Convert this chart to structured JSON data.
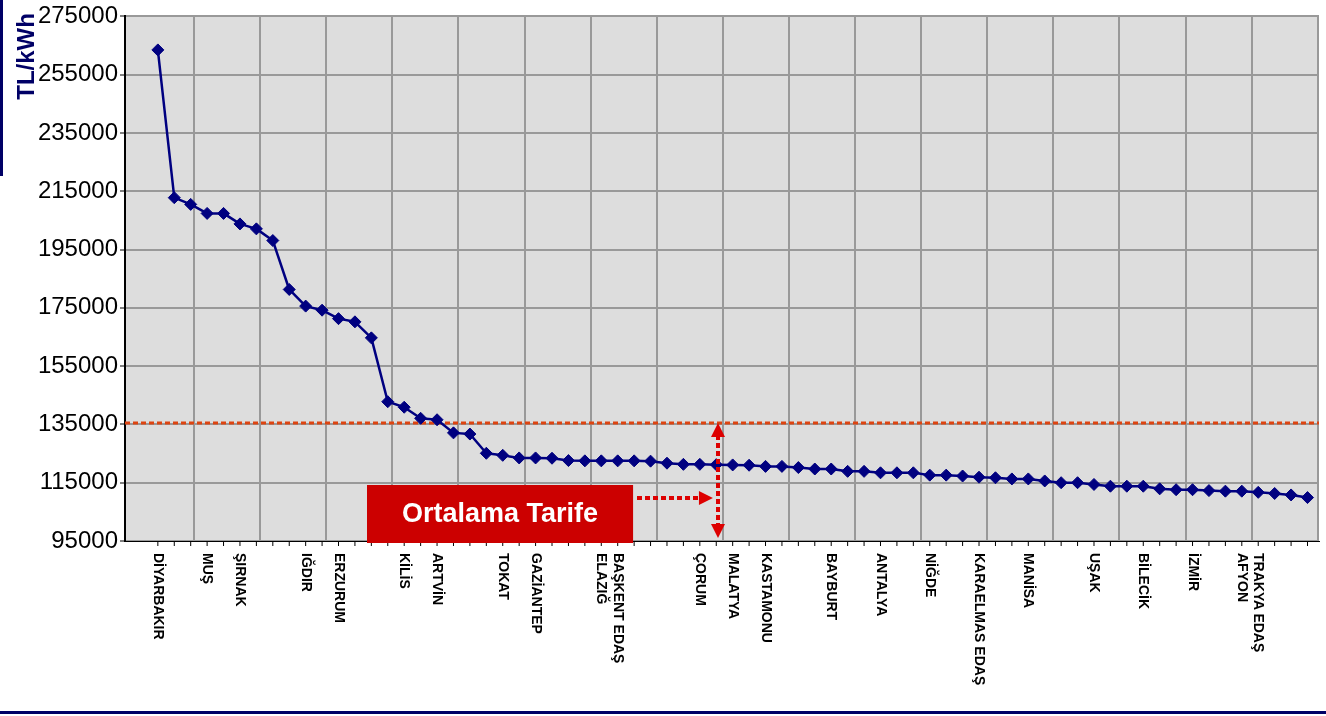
{
  "chart_data": {
    "type": "line",
    "ylabel": "TL/kWh",
    "categories": [
      "DİYARBAKIR",
      null,
      null,
      "MUŞ",
      null,
      "ŞIRNAK",
      null,
      null,
      null,
      "IĞDIR",
      null,
      "ERZURUM",
      null,
      null,
      null,
      "KİLİS",
      null,
      "ARTVİN",
      null,
      null,
      null,
      "TOKAT",
      null,
      "GAZİANTEP",
      null,
      null,
      null,
      "ELAZIĞ",
      "BAŞKENT EDAŞ",
      null,
      null,
      null,
      null,
      "ÇORUM",
      null,
      "MALATYA",
      null,
      "KASTAMONU",
      null,
      null,
      null,
      "BAYBURT",
      null,
      null,
      "ANTALYA",
      null,
      null,
      "NİĞDE",
      null,
      null,
      "KARAELMAS EDAŞ",
      null,
      null,
      "MANİSA",
      null,
      null,
      null,
      "UŞAK",
      null,
      null,
      "BİLECİK",
      null,
      null,
      "İZMİR",
      null,
      null,
      "AFYON",
      "TRAKYA EDAŞ",
      null,
      null,
      null
    ],
    "values": [
      263500,
      212800,
      210500,
      207400,
      207400,
      203800,
      202100,
      198100,
      181300,
      175600,
      174200,
      171300,
      170200,
      164700,
      142800,
      140900,
      137100,
      136600,
      132100,
      131700,
      125100,
      124400,
      123500,
      123500,
      123400,
      122600,
      122500,
      122500,
      122500,
      122500,
      122400,
      121700,
      121300,
      121300,
      121200,
      121100,
      121000,
      120600,
      120600,
      120200,
      119700,
      119700,
      118900,
      118900,
      118400,
      118400,
      118400,
      117600,
      117600,
      117300,
      116900,
      116700,
      116300,
      116300,
      115600,
      115000,
      115000,
      114400,
      113800,
      113800,
      113800,
      112900,
      112600,
      112600,
      112300,
      112100,
      112100,
      111700,
      111300,
      110800,
      109900
    ],
    "color": "#000080",
    "marker": "diamond",
    "line_style": "solid",
    "ylim": [
      95000,
      275000
    ],
    "yticks": [
      95000,
      115000,
      135000,
      155000,
      175000,
      195000,
      215000,
      235000,
      255000,
      275000
    ],
    "grid": true,
    "ref_lines": [
      {
        "axis": "y",
        "value": 135500,
        "label": "Ortalama Tarife",
        "color": "#dd4411",
        "line_style": "dotted"
      }
    ]
  }
}
